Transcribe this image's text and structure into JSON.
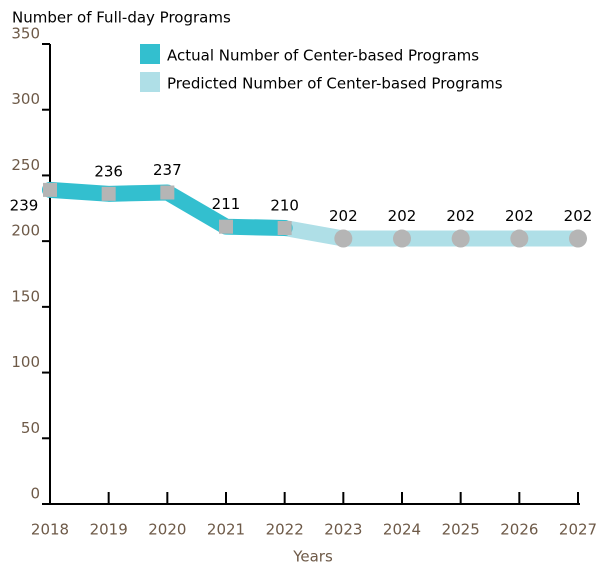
{
  "chart_data": {
    "type": "line",
    "title": "Number of Full-day Programs",
    "x_label": "Years",
    "categories": [
      "2018",
      "2019",
      "2020",
      "2021",
      "2022",
      "2023",
      "2024",
      "2025",
      "2026",
      "2027"
    ],
    "series": [
      {
        "name": "Actual Number of Center-based Programs",
        "color": "#33bfcf",
        "marker": "square",
        "values": [
          239,
          236,
          237,
          211,
          210,
          null,
          null,
          null,
          null,
          null
        ]
      },
      {
        "name": "Predicted Number of Center-based Programs",
        "color": "#afdfe7",
        "marker": "circle",
        "values": [
          null,
          null,
          null,
          null,
          null,
          202,
          202,
          202,
          202,
          202
        ]
      }
    ],
    "marker_color": "#b5b5b5",
    "ylim": [
      0,
      350
    ],
    "yticks": [
      0,
      50,
      100,
      150,
      200,
      250,
      300,
      350
    ]
  }
}
